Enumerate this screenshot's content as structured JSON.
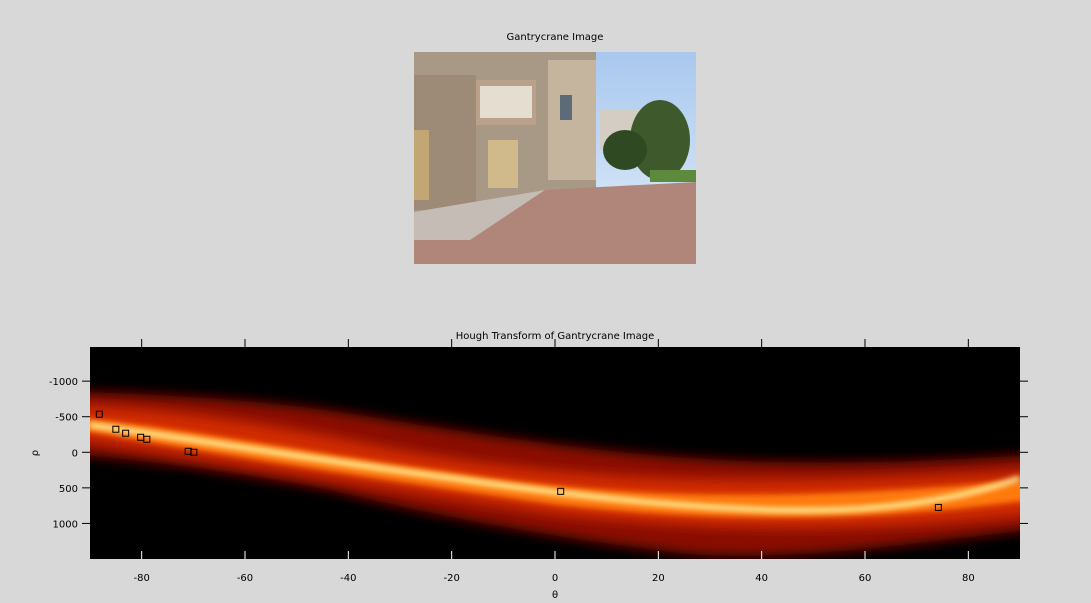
{
  "chart_data": [
    {
      "type": "image",
      "title": "Gantrycrane Image"
    },
    {
      "type": "heatmap",
      "title": "Hough Transform of Gantrycrane Image",
      "xlabel": "θ",
      "ylabel": "ρ",
      "xlim": [
        -90,
        90
      ],
      "xticks": [
        -80,
        -60,
        -40,
        -20,
        0,
        20,
        40,
        60,
        80
      ],
      "ylim": [
        -1480,
        1500
      ],
      "yticks": [
        -1000,
        -500,
        0,
        500,
        1000
      ],
      "y_reversed": true,
      "x": [
        -88.2,
        -85,
        -83.1,
        -80.2,
        -79,
        -71,
        -69.9,
        1.1,
        74.2
      ],
      "values": [
        -535,
        -324,
        -268,
        -211,
        -183,
        -14,
        0,
        549,
        775
      ],
      "color": "#000000"
    }
  ]
}
